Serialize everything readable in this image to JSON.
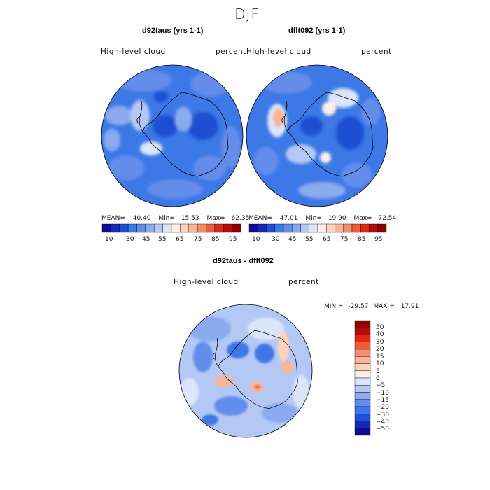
{
  "figure": {
    "season": "DJF",
    "colors": {
      "c1": "#0c0c96",
      "c2": "#1428b4",
      "c3": "#1e50d2",
      "c4": "#3c78e6",
      "c5": "#648ceb",
      "c6": "#8caaf0",
      "c7": "#b4c8f5",
      "c8": "#dce6fa",
      "warm0": "#fff0e6",
      "warm1": "#ffd2be",
      "warm2": "#fab496",
      "warm3": "#f58c6e",
      "warm4": "#f05a3c",
      "warm5": "#dc2814",
      "warm6": "#b40a0a",
      "warm7": "#8c0000",
      "coast": "#000000"
    }
  },
  "panels": [
    {
      "title": "d92taus (yrs 1-1)",
      "variable": "High-level cloud",
      "units": "percent",
      "stats": {
        "mean_label": "MEAN=",
        "mean": "40.40",
        "min_label": "Min=",
        "min": "15.53",
        "max_label": "Max=",
        "max": "62.35"
      }
    },
    {
      "title": "dflt092 (yrs 1-1)",
      "variable": "High-level cloud",
      "units": "percent",
      "stats": {
        "mean_label": "MEAN=",
        "mean": "47.01",
        "min_label": "Min=",
        "min": "19.90",
        "max_label": "Max=",
        "max": "72.54"
      }
    }
  ],
  "colorbar_top": {
    "ticks": [
      "10",
      "30",
      "45",
      "55",
      "65",
      "75",
      "85",
      "95"
    ],
    "colors": [
      "#0c0c96",
      "#1428b4",
      "#1e50d2",
      "#3c78e6",
      "#648ceb",
      "#8caaf0",
      "#b4c8f5",
      "#dce6fa",
      "#fff0e6",
      "#ffd2be",
      "#fab496",
      "#f58c6e",
      "#f05a3c",
      "#dc2814",
      "#b40a0a",
      "#8c0000"
    ]
  },
  "diff_panel": {
    "title": "d92taus - dflt092",
    "variable": "High-level cloud",
    "units": "percent",
    "min_label": "MIN =",
    "min": "-29.57",
    "max_label": "MAX =",
    "max": "17.91"
  },
  "colorbar_diff": {
    "ticks": [
      "50",
      "40",
      "30",
      "20",
      "15",
      "10",
      "5",
      "0",
      "−5",
      "−10",
      "−15",
      "−20",
      "−30",
      "−40",
      "−50"
    ],
    "colors": [
      "#8c0000",
      "#b40a0a",
      "#dc2814",
      "#f05a3c",
      "#f58c6e",
      "#fab496",
      "#ffd2be",
      "#fff0e6",
      "#dce6fa",
      "#b4c8f5",
      "#8caaf0",
      "#648ceb",
      "#3c78e6",
      "#1e50d2",
      "#1428b4",
      "#0c0c96"
    ]
  }
}
